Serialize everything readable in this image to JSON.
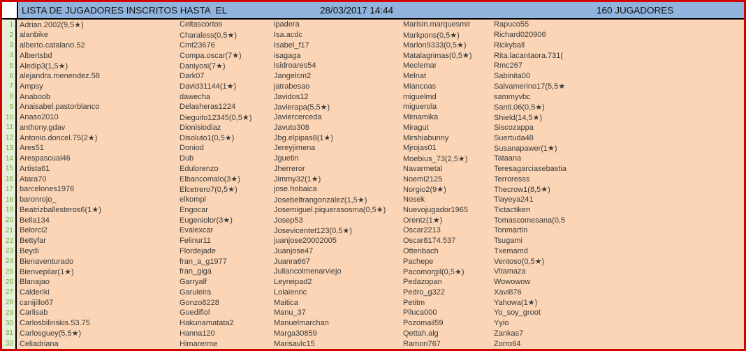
{
  "header": {
    "title": "LISTA DE JUGADORES INSCRITOS HASTA  EL",
    "datetime": "28/03/2017 14:44",
    "player_count": "160 JUGADORES"
  },
  "colors": {
    "header_blue": "#91B4DE",
    "body_peach": "#FBD5B5",
    "row_number_bg": "#E6EFD8",
    "row_number_green": "#78A546",
    "frame_red": "#D40000",
    "divider_black": "#000000"
  },
  "table": {
    "rows": [
      {
        "num": "1",
        "cols": [
          "Adrian.2002(9,5★)",
          "Celtascortos",
          "ipadera",
          "Marisin.marquesmir",
          "Rapuco55"
        ]
      },
      {
        "num": "2",
        "cols": [
          "alanbike",
          "Charaless(0,5★)",
          "Isa.acdc",
          "Markpons(0,5★)",
          "Richard020906"
        ]
      },
      {
        "num": "3",
        "cols": [
          "alberto.catalano.52",
          "Cmt23676",
          "Isabel_f17",
          "Marlon9333(0,5★)",
          "Rickyball"
        ]
      },
      {
        "num": "4",
        "cols": [
          "Albertsbd",
          "Compa.oscar(7★)",
          "isagaga",
          "Matalagrimas(0,5★)",
          "Rita.lacantaora.731("
        ]
      },
      {
        "num": "5",
        "cols": [
          "Aledip3(1,5★)",
          "Daniyosi(7★)",
          "Isidroares54",
          "Meclemar",
          "Rmc267"
        ]
      },
      {
        "num": "6",
        "cols": [
          "alejandra.menendez.58",
          "Dark07",
          "Jangelcm2",
          "Melnat",
          "Sabinita00"
        ]
      },
      {
        "num": "7",
        "cols": [
          "Ampsy",
          "David31144(1★)",
          "jatrabesao",
          "Miancoas",
          "Salvamerino17(5,5★"
        ]
      },
      {
        "num": "8",
        "cols": [
          "Anaboob",
          "dawecha",
          "Javidos12",
          "miguelmd",
          "sammyvbc"
        ]
      },
      {
        "num": "9",
        "cols": [
          "Anaisabel.pastorblanco",
          "Delasheras1224",
          "Javierapa(5,5★)",
          "miguerola",
          "Santi.06(0,5★)"
        ]
      },
      {
        "num": "10",
        "cols": [
          "Anaso2010",
          "Dieguito12345(0,5★)",
          "Javiercerceda",
          "Mimamika",
          "Shield(14,5★)"
        ]
      },
      {
        "num": "11",
        "cols": [
          "anthony.gdav",
          "Dionisiodiaz",
          "Javuto308",
          "Miragut",
          "Siscozappa"
        ]
      },
      {
        "num": "12",
        "cols": [
          "Antonio.doncel.75(2★)",
          "Disoluto1(0,5★)",
          "Jbg.elpipas8(1★)",
          "Mirshiabunny",
          "Suertuda48"
        ]
      },
      {
        "num": "13",
        "cols": [
          "Ares51",
          "Doniod",
          "Jereyjimena",
          "Mjrojas01",
          "Susanapawer(1★)"
        ]
      },
      {
        "num": "14",
        "cols": [
          "Arespascual46",
          "Dub",
          "Jguetin",
          "Moebius_73(2,5★)",
          "Tataana"
        ]
      },
      {
        "num": "15",
        "cols": [
          "Artista61",
          "Edulorenzo",
          "Jherreror",
          "Navarmetal",
          "Teresagarciasebastia"
        ]
      },
      {
        "num": "16",
        "cols": [
          "Atara70",
          "Elbancomalo(3★)",
          "Jimmy32(1★)",
          "Noemi2125",
          "Terroresss"
        ]
      },
      {
        "num": "17",
        "cols": [
          "barcelones1976",
          "Elcetrero7(0,5★)",
          "jose.hobaica",
          "Norgio2(9★)",
          "Thecrow1(8,5★)"
        ]
      },
      {
        "num": "18",
        "cols": [
          "baronrojo_",
          "elkompi",
          "Josebeltrangonzalez(1,5★)",
          "Nosek",
          "Tiayeya241"
        ]
      },
      {
        "num": "19",
        "cols": [
          "Beatrizballesteros6(1★)",
          "Engocar",
          "Josemiguel.piquerasosma(0,5★)",
          "Nuevojugador1965",
          "Tictactiken"
        ]
      },
      {
        "num": "20",
        "cols": [
          "Bella134",
          "Eugeniolor(3★)",
          "Josep53",
          "Orentz(1★)",
          "Tomascomesana(0,5"
        ]
      },
      {
        "num": "21",
        "cols": [
          "Belorci2",
          "Evalexcar",
          "Josevicentet123(0,5★)",
          "Oscar2213",
          "Tonmartin"
        ]
      },
      {
        "num": "22",
        "cols": [
          "Bettyfar",
          "Felinur11",
          "juanjose20002005",
          "Oscar8174.537",
          "Tsugami"
        ]
      },
      {
        "num": "23",
        "cols": [
          "Beydi",
          "Flordejade",
          "Juanjose47",
          "Ottenbach",
          "Txemamd"
        ]
      },
      {
        "num": "24",
        "cols": [
          "Bienaventurado",
          "fran_a_g1977",
          "Juanra667",
          "Pachepe",
          "Ventoso(0,5★)"
        ]
      },
      {
        "num": "25",
        "cols": [
          "Bienvepilar(1★)",
          "fran_giga",
          "Juliancolmenarviejo",
          "Pacomorgil(0,5★)",
          "Vitamaza"
        ]
      },
      {
        "num": "26",
        "cols": [
          "Blanajao",
          "Garryalf",
          "Leyreipad2",
          "Pedazopan",
          "Wowowow"
        ]
      },
      {
        "num": "27",
        "cols": [
          "Calderiki",
          "Garuleira",
          "Lolaienric",
          "Pedro_g322",
          "Xavi876"
        ]
      },
      {
        "num": "28",
        "cols": [
          "canijillo67",
          "Gonzo8228",
          "Maitica",
          "Petitm",
          "Yahowa(1★)"
        ]
      },
      {
        "num": "29",
        "cols": [
          "Carlisab",
          "Guedifiol",
          "Manu_37",
          "Piluca000",
          "Yo_soy_groot"
        ]
      },
      {
        "num": "30",
        "cols": [
          "Carlosbilinskis.53.75",
          "Hakunamatata2",
          "Manuelmarchan",
          "Pozomail59",
          "Yyio"
        ]
      },
      {
        "num": "31",
        "cols": [
          "Carlosguey(5,5★)",
          "Hanna120",
          "Marga30859",
          "Qettah.alg",
          "Zankas7"
        ]
      },
      {
        "num": "32",
        "cols": [
          "Celiadriana",
          "Himarerme",
          "Marisavlc15",
          "Ramon767",
          "Zorro64"
        ]
      }
    ]
  }
}
